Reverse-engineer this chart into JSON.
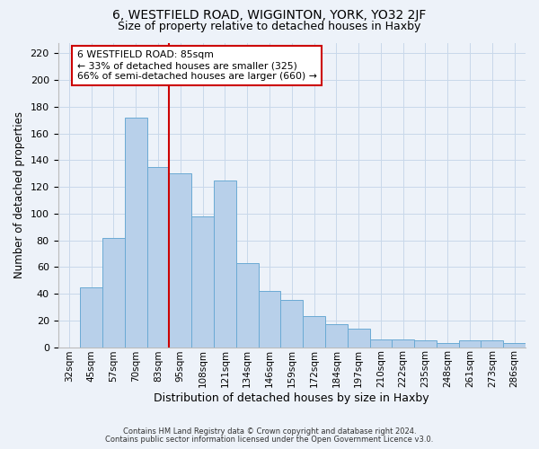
{
  "title1": "6, WESTFIELD ROAD, WIGGINTON, YORK, YO32 2JF",
  "title2": "Size of property relative to detached houses in Haxby",
  "xlabel": "Distribution of detached houses by size in Haxby",
  "ylabel": "Number of detached properties",
  "categories": [
    "32sqm",
    "45sqm",
    "57sqm",
    "70sqm",
    "83sqm",
    "95sqm",
    "108sqm",
    "121sqm",
    "134sqm",
    "146sqm",
    "159sqm",
    "172sqm",
    "184sqm",
    "197sqm",
    "210sqm",
    "222sqm",
    "235sqm",
    "248sqm",
    "261sqm",
    "273sqm",
    "286sqm"
  ],
  "values": [
    0,
    45,
    82,
    172,
    135,
    130,
    98,
    125,
    63,
    42,
    35,
    23,
    17,
    14,
    6,
    6,
    5,
    3,
    5,
    5,
    3
  ],
  "bar_color": "#b8d0ea",
  "bar_edge_color": "#6aaad4",
  "vline_color": "#cc0000",
  "annotation_line1": "6 WESTFIELD ROAD: 85sqm",
  "annotation_line2": "← 33% of detached houses are smaller (325)",
  "annotation_line3": "66% of semi-detached houses are larger (660) →",
  "annotation_box_color": "#ffffff",
  "annotation_box_edge_color": "#cc0000",
  "ylim": [
    0,
    228
  ],
  "yticks": [
    0,
    20,
    40,
    60,
    80,
    100,
    120,
    140,
    160,
    180,
    200,
    220
  ],
  "grid_color": "#c8d8ea",
  "background_color": "#edf2f9",
  "footer1": "Contains HM Land Registry data © Crown copyright and database right 2024.",
  "footer2": "Contains public sector information licensed under the Open Government Licence v3.0."
}
